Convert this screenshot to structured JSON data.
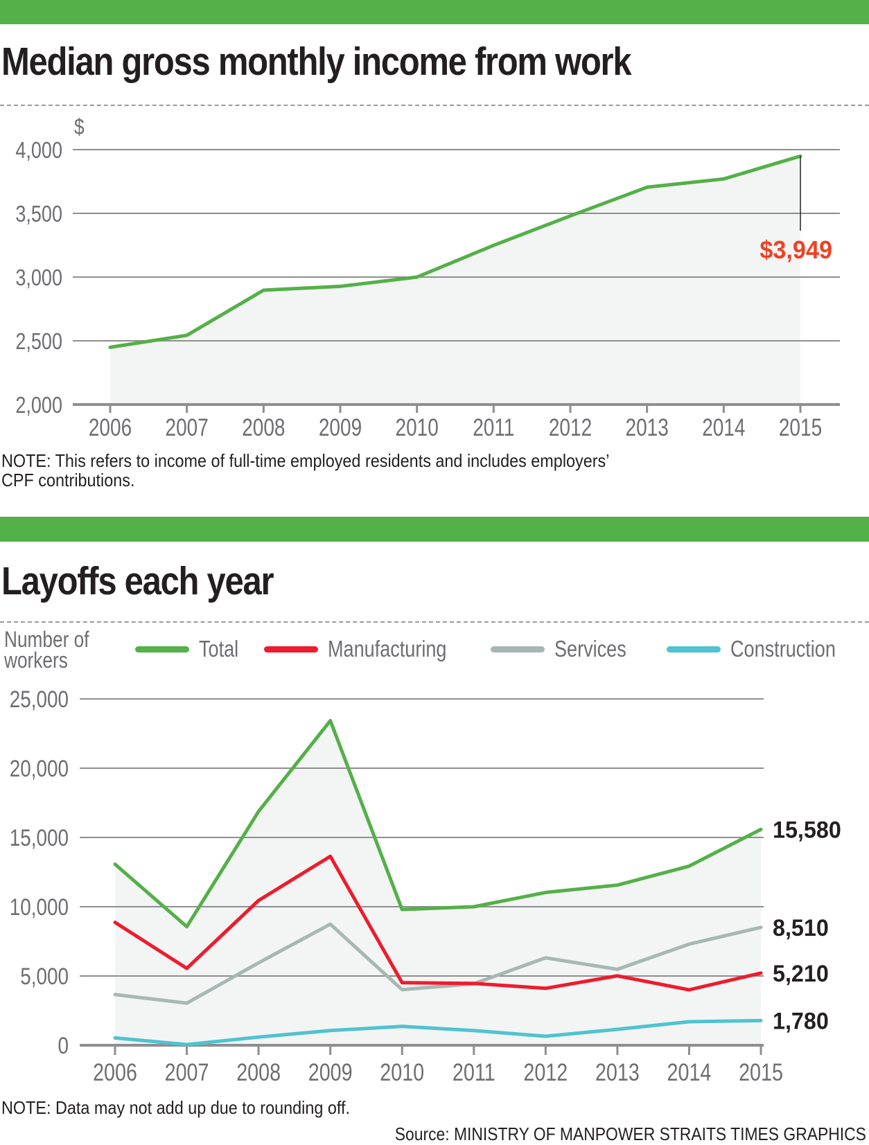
{
  "colors": {
    "header_bar": "#54b048",
    "total": "#54b048",
    "manufacturing": "#ed1c2e",
    "services": "#a7b7b4",
    "construction": "#4fc3d0",
    "highlight": "#ef4123",
    "area_fill": "#f3f4f4",
    "grid": "#8e8e90",
    "axis_text": "#6d6e71"
  },
  "chart_data": [
    {
      "type": "area",
      "title": "Median gross monthly income from work",
      "ylabel": "$",
      "xlabel": "",
      "categories": [
        "2006",
        "2007",
        "2008",
        "2009",
        "2010",
        "2011",
        "2012",
        "2013",
        "2014",
        "2015"
      ],
      "yticks": [
        "2,000",
        "2,500",
        "3,000",
        "3,500",
        "4,000"
      ],
      "ytick_values": [
        2000,
        2500,
        3000,
        3500,
        4000
      ],
      "ylim": [
        2000,
        4000
      ],
      "grid": true,
      "series": [
        {
          "name": "Median gross monthly income",
          "values": [
            2449,
            2543,
            2897,
            2927,
            3000,
            3249,
            3480,
            3705,
            3770,
            3949
          ]
        }
      ],
      "annotation": {
        "label": "$3,949",
        "category": "2015",
        "value": 3949
      },
      "note": "NOTE: This refers to income of full-time employed residents and includes employers’ CPF contributions.",
      "note_lines": [
        "NOTE: This refers to income of full-time employed residents and includes employers’",
        "CPF contributions."
      ]
    },
    {
      "type": "line",
      "title": "Layoffs each year",
      "ylabel": "Number of workers",
      "ylabel_lines": [
        "Number of",
        "workers"
      ],
      "xlabel": "",
      "categories": [
        "2006",
        "2007",
        "2008",
        "2009",
        "2010",
        "2011",
        "2012",
        "2013",
        "2014",
        "2015"
      ],
      "yticks": [
        "0",
        "5,000",
        "10,000",
        "15,000",
        "20,000",
        "25,000"
      ],
      "ytick_values": [
        0,
        5000,
        10000,
        15000,
        20000,
        25000
      ],
      "ylim": [
        0,
        25000
      ],
      "grid": true,
      "legend": "top",
      "series": [
        {
          "name": "Total",
          "key": "total",
          "values": [
            13070,
            8560,
            16880,
            23430,
            9800,
            10000,
            11030,
            11560,
            12930,
            15580
          ],
          "end_label": "15,580"
        },
        {
          "name": "Manufacturing",
          "key": "manufacturing",
          "values": [
            8870,
            5550,
            10450,
            13640,
            4520,
            4460,
            4110,
            5010,
            4000,
            5210
          ],
          "end_label": "5,210"
        },
        {
          "name": "Services",
          "key": "services",
          "values": [
            3660,
            3040,
            5950,
            8740,
            4010,
            4440,
            6310,
            5480,
            7300,
            8510
          ],
          "end_label": "8,510"
        },
        {
          "name": "Construction",
          "key": "construction",
          "values": [
            530,
            50,
            590,
            1060,
            1360,
            1060,
            650,
            1150,
            1700,
            1780
          ],
          "end_label": "1,780"
        }
      ],
      "note": "NOTE: Data may not add up due to rounding off."
    }
  ],
  "footer": {
    "source": "Source: MINISTRY OF MANPOWER   STRAITS TIMES GRAPHICS"
  }
}
